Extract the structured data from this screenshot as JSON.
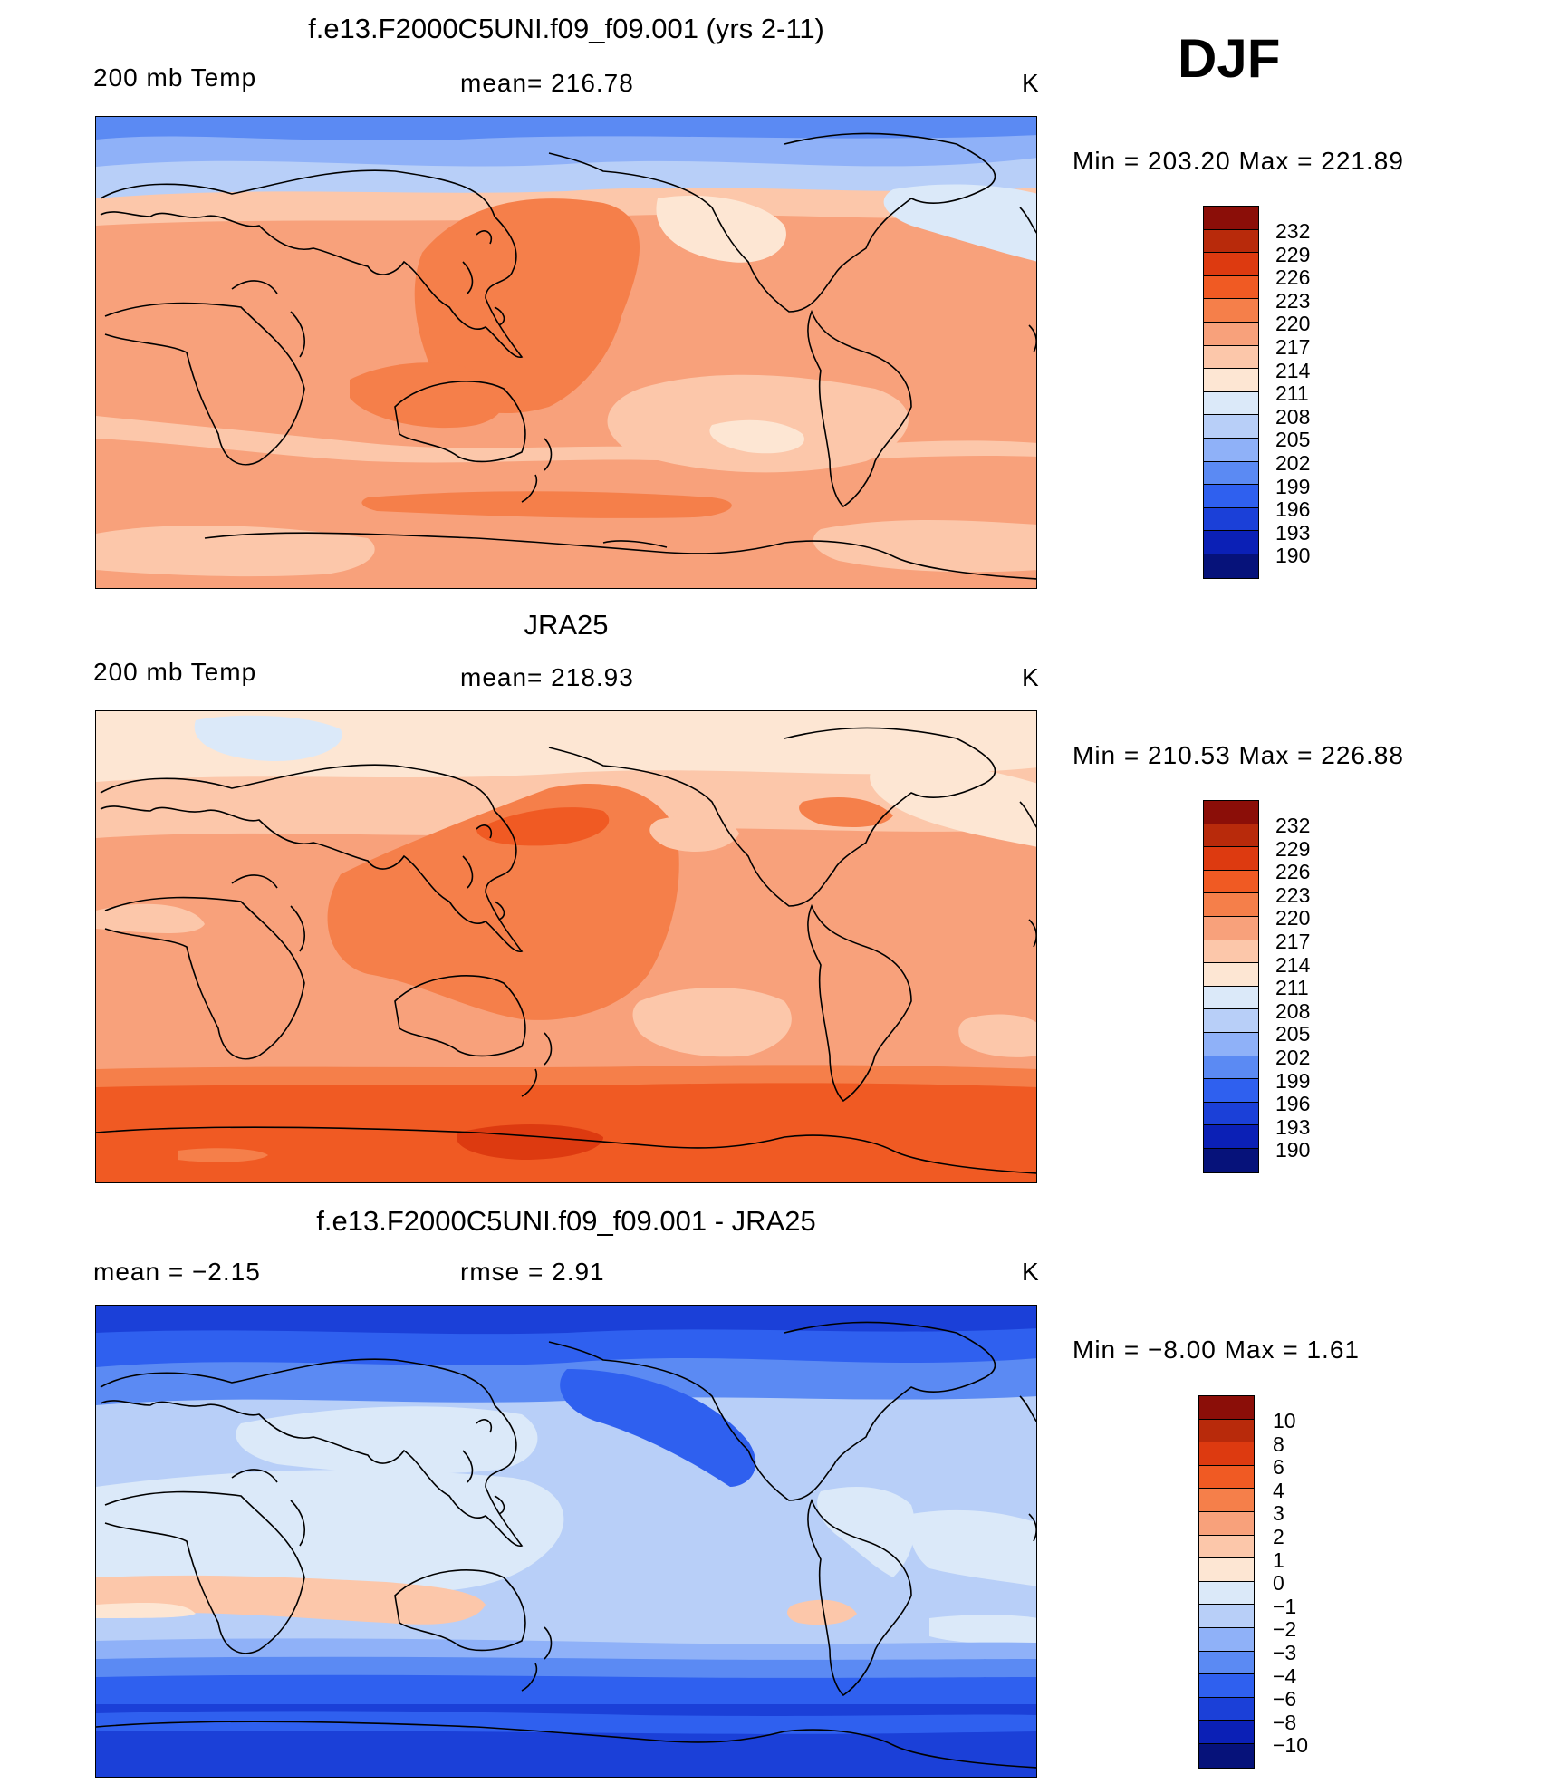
{
  "season": "DJF",
  "panels": [
    {
      "title": "f.e13.F2000C5UNI.f09_f09.001 (yrs 2-11)",
      "left_label": "200 mb Temp",
      "mid_label": "mean= 216.78",
      "units": "K",
      "min_max": "Min = 203.20 Max = 221.89",
      "colorbar": {
        "labels": [
          "232",
          "229",
          "226",
          "223",
          "220",
          "217",
          "214",
          "211",
          "208",
          "205",
          "202",
          "199",
          "196",
          "193",
          "190"
        ],
        "colors": [
          "#8b0e08",
          "#b82a0b",
          "#dd3a10",
          "#f05a23",
          "#f57f4a",
          "#f8a17b",
          "#fcc7aa",
          "#fde6d3",
          "#dbe9f9",
          "#b8cff8",
          "#8fb1f8",
          "#5b8af3",
          "#2f60ef",
          "#1b40d8",
          "#0b20b6",
          "#06127a"
        ]
      }
    },
    {
      "title": "JRA25",
      "left_label": "200 mb Temp",
      "mid_label": "mean= 218.93",
      "units": "K",
      "min_max": "Min = 210.53 Max = 226.88",
      "colorbar": {
        "labels": [
          "232",
          "229",
          "226",
          "223",
          "220",
          "217",
          "214",
          "211",
          "208",
          "205",
          "202",
          "199",
          "196",
          "193",
          "190"
        ],
        "colors": [
          "#8b0e08",
          "#b82a0b",
          "#dd3a10",
          "#f05a23",
          "#f57f4a",
          "#f8a17b",
          "#fcc7aa",
          "#fde6d3",
          "#dbe9f9",
          "#b8cff8",
          "#8fb1f8",
          "#5b8af3",
          "#2f60ef",
          "#1b40d8",
          "#0b20b6",
          "#06127a"
        ]
      }
    },
    {
      "title": "f.e13.F2000C5UNI.f09_f09.001 - JRA25",
      "left_label": "mean =    −2.15",
      "mid_label": "rmse =     2.91",
      "units": "K",
      "min_max": "Min =    −8.00 Max =     1.61",
      "colorbar": {
        "labels": [
          "10",
          "8",
          "6",
          "4",
          "3",
          "2",
          "1",
          "0",
          "−1",
          "−2",
          "−3",
          "−4",
          "−6",
          "−8",
          "−10"
        ],
        "colors": [
          "#8b0e08",
          "#b82a0b",
          "#dd3a10",
          "#f05a23",
          "#f57f4a",
          "#f8a17b",
          "#fcc7aa",
          "#fde6d3",
          "#dbe9f9",
          "#b8cff8",
          "#8fb1f8",
          "#5b8af3",
          "#2f60ef",
          "#1b40d8",
          "#0b20b6",
          "#06127a"
        ]
      }
    }
  ]
}
